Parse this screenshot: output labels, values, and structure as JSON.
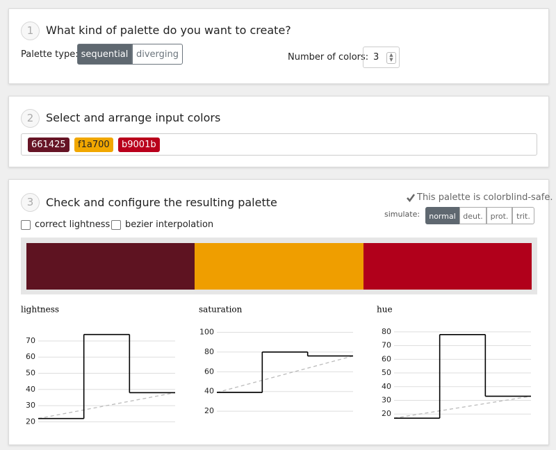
{
  "steps": [
    {
      "number": "1",
      "title": "What kind of palette do you want to create?"
    },
    {
      "number": "2",
      "title": "Select and arrange input colors"
    },
    {
      "number": "3",
      "title": "Check and configure the resulting palette"
    }
  ],
  "palette_type": {
    "label": "Palette type:",
    "options": [
      "sequential",
      "diverging"
    ],
    "selected": 0
  },
  "num_colors": {
    "label": "Number of colors:",
    "value": 3
  },
  "input_colors": [
    "661425",
    "f1a700",
    "b9001b"
  ],
  "colorblind": {
    "status": "This palette is colorblind-safe.",
    "simulate_label": "simulate:",
    "modes": [
      "normal",
      "deut.",
      "prot.",
      "trit."
    ],
    "selected": 0
  },
  "options": [
    "correct lightness",
    "bezier interpolation"
  ],
  "palette": [
    "#5e1321",
    "#ef9e00",
    "#b1001b"
  ],
  "chart_data": [
    {
      "type": "step",
      "title": "lightness",
      "values": [
        22,
        74,
        38
      ],
      "color": "#000000",
      "ylim": [
        18,
        79
      ],
      "yticks": [
        20,
        30,
        40,
        50,
        60,
        70
      ],
      "grid": true,
      "trend_line": true
    },
    {
      "type": "step",
      "title": "saturation",
      "values": [
        39,
        80,
        76
      ],
      "color": "#000000",
      "ylim": [
        6,
        106
      ],
      "yticks": [
        20,
        40,
        60,
        80,
        100
      ],
      "grid": true,
      "trend_line": true
    },
    {
      "type": "step",
      "title": "hue",
      "values": [
        17,
        78,
        33
      ],
      "color": "#000000",
      "ylim": [
        12,
        84
      ],
      "yticks": [
        20,
        30,
        40,
        50,
        60,
        70,
        80
      ],
      "grid": true,
      "trend_line": true
    }
  ]
}
